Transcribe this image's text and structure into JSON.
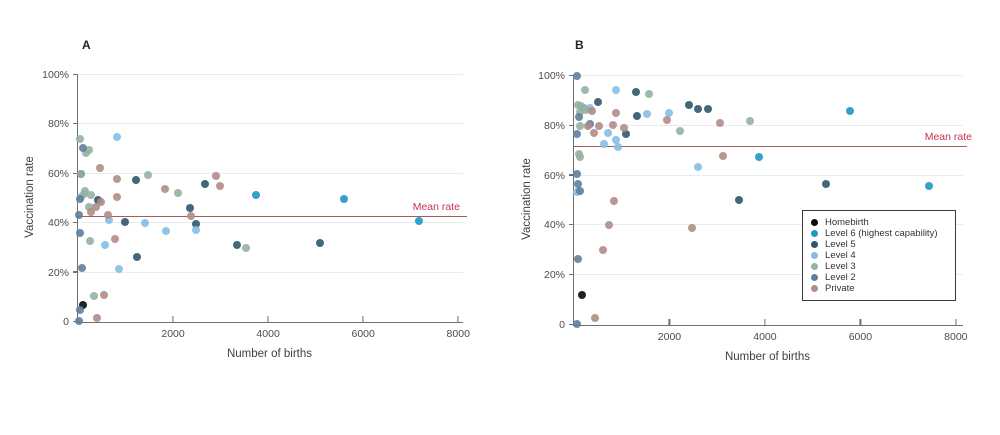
{
  "palette": {
    "homebirth": "#0a0a0a",
    "level6": "#1e96c8",
    "level5": "#30566d",
    "level4": "#86bde6",
    "level3": "#95b1a2",
    "level2": "#5e7f9d",
    "private": "#b18c86",
    "mean_line": "#ab5a55",
    "mean_text": "#c73350",
    "gridline": "#e4edf1",
    "axis": "#6f6f6f"
  },
  "legend": {
    "items": [
      {
        "key": "homebirth",
        "label": "Homebirth"
      },
      {
        "key": "level6",
        "label": "Level 6 (highest capability)"
      },
      {
        "key": "level5",
        "label": "Level 5"
      },
      {
        "key": "level4",
        "label": "Level 4"
      },
      {
        "key": "level3",
        "label": "Level 3"
      },
      {
        "key": "level2",
        "label": "Level 2"
      },
      {
        "key": "private",
        "label": "Private"
      }
    ]
  },
  "chart_data": [
    {
      "type": "scatter",
      "panel_label": "A",
      "xlabel": "Number of births",
      "ylabel": "Vaccination rate",
      "xlim": [
        0,
        8100
      ],
      "ylim": [
        0,
        100
      ],
      "x_ticks": [
        {
          "v": 2000,
          "label": "2000"
        },
        {
          "v": 4000,
          "label": "4000"
        },
        {
          "v": 6000,
          "label": "6000"
        },
        {
          "v": 8000,
          "label": "8000"
        }
      ],
      "y_ticks": [
        {
          "v": 0,
          "label": "0"
        },
        {
          "v": 20,
          "label": "20%"
        },
        {
          "v": 40,
          "label": "40%"
        },
        {
          "v": 60,
          "label": "60%"
        },
        {
          "v": 80,
          "label": "80%"
        },
        {
          "v": 100,
          "label": "100%"
        }
      ],
      "grid": "horizontal",
      "mean_rate": 42.5,
      "mean_label": "Mean rate",
      "show_legend": false,
      "series": [
        {
          "name": "Homebirth",
          "key": "homebirth",
          "points": [
            [
              100,
              7
            ]
          ]
        },
        {
          "name": "Level 6 (highest capability)",
          "key": "level6",
          "points": [
            [
              3740,
              51.5
            ],
            [
              5590,
              50
            ],
            [
              7180,
              41
            ]
          ]
        },
        {
          "name": "Level 5",
          "key": "level5",
          "points": [
            [
              60,
              60
            ],
            [
              420,
              49.5
            ],
            [
              980,
              40.5
            ],
            [
              1230,
              57.5
            ],
            [
              1250,
              26.5
            ],
            [
              2350,
              46
            ],
            [
              2480,
              39.5
            ],
            [
              2680,
              56
            ],
            [
              3350,
              31
            ],
            [
              5090,
              32
            ]
          ]
        },
        {
          "name": "Level 4",
          "key": "level4",
          "points": [
            [
              60,
              50.5
            ],
            [
              560,
              31
            ],
            [
              660,
              41.5
            ],
            [
              810,
              75
            ],
            [
              870,
              21.5
            ],
            [
              1400,
              40
            ],
            [
              1850,
              36.8
            ],
            [
              2480,
              37.2
            ]
          ]
        },
        {
          "name": "Level 3",
          "key": "level3",
          "points": [
            [
              50,
              74
            ],
            [
              170,
              68.5
            ],
            [
              230,
              69.5
            ],
            [
              60,
              59.8
            ],
            [
              120,
              52
            ],
            [
              150,
              53
            ],
            [
              280,
              51.5
            ],
            [
              240,
              46.5
            ],
            [
              260,
              33
            ],
            [
              330,
              10.5
            ],
            [
              1480,
              59.5
            ],
            [
              2100,
              52.3
            ],
            [
              3530,
              30
            ]
          ]
        },
        {
          "name": "Level 2",
          "key": "level2",
          "points": [
            [
              100,
              70.5
            ],
            [
              40,
              50
            ],
            [
              30,
              43.5
            ],
            [
              50,
              36
            ],
            [
              80,
              22
            ],
            [
              50,
              5
            ],
            [
              20,
              0.5
            ]
          ]
        },
        {
          "name": "Private",
          "key": "private",
          "points": [
            [
              470,
              62.5
            ],
            [
              810,
              58
            ],
            [
              280,
              44.5
            ],
            [
              370,
              46.5
            ],
            [
              480,
              48.5
            ],
            [
              640,
              43.5
            ],
            [
              820,
              50.5
            ],
            [
              780,
              33.7
            ],
            [
              1840,
              53.7
            ],
            [
              2370,
              42.8
            ],
            [
              2900,
              59
            ],
            [
              2990,
              55
            ],
            [
              550,
              11
            ],
            [
              400,
              1.5
            ]
          ]
        }
      ]
    },
    {
      "type": "scatter",
      "panel_label": "B",
      "xlabel": "Number of births",
      "ylabel": "Vaccination rate",
      "xlim": [
        0,
        8150
      ],
      "ylim": [
        0,
        100
      ],
      "x_ticks": [
        {
          "v": 2000,
          "label": "2000"
        },
        {
          "v": 4000,
          "label": "4000"
        },
        {
          "v": 6000,
          "label": "6000"
        },
        {
          "v": 8000,
          "label": "8000"
        }
      ],
      "y_ticks": [
        {
          "v": 0,
          "label": "0"
        },
        {
          "v": 20,
          "label": "20%"
        },
        {
          "v": 40,
          "label": "40%"
        },
        {
          "v": 60,
          "label": "60%"
        },
        {
          "v": 80,
          "label": "80%"
        },
        {
          "v": 100,
          "label": "100%"
        }
      ],
      "grid": "horizontal",
      "mean_rate": 71.5,
      "mean_label": "Mean rate",
      "show_legend": true,
      "series": [
        {
          "name": "Homebirth",
          "key": "homebirth",
          "points": [
            [
              160,
              12
            ]
          ]
        },
        {
          "name": "Level 6 (highest capability)",
          "key": "level6",
          "points": [
            [
              3870,
              67.5
            ],
            [
              5790,
              86
            ],
            [
              7430,
              56
            ]
          ]
        },
        {
          "name": "Level 5",
          "key": "level5",
          "points": [
            [
              500,
              89.5
            ],
            [
              1300,
              93.5
            ],
            [
              1330,
              84
            ],
            [
              1080,
              76.8
            ],
            [
              2410,
              88.5
            ],
            [
              2590,
              86.8
            ],
            [
              2810,
              86.8
            ],
            [
              3460,
              50.3
            ],
            [
              5280,
              56.8
            ]
          ]
        },
        {
          "name": "Level 4",
          "key": "level4",
          "points": [
            [
              880,
              94.3
            ],
            [
              340,
              87
            ],
            [
              1520,
              84.7
            ],
            [
              1980,
              85
            ],
            [
              720,
              77.3
            ],
            [
              870,
              74.3
            ],
            [
              620,
              72.8
            ],
            [
              930,
              71.3
            ],
            [
              2600,
              63.5
            ],
            [
              70,
              53.5
            ]
          ]
        },
        {
          "name": "Level 3",
          "key": "level3",
          "points": [
            [
              240,
              94.3
            ],
            [
              1570,
              92.7
            ],
            [
              90,
              88.5
            ],
            [
              150,
              88
            ],
            [
              210,
              87.3
            ],
            [
              260,
              86.3
            ],
            [
              130,
              85.5
            ],
            [
              135,
              80
            ],
            [
              2230,
              77.8
            ],
            [
              3690,
              81.8
            ],
            [
              95,
              68.5
            ],
            [
              120,
              67.3
            ]
          ]
        },
        {
          "name": "Level 2",
          "key": "level2",
          "points": [
            [
              60,
              100
            ],
            [
              100,
              83.5
            ],
            [
              340,
              80.7
            ],
            [
              65,
              76.8
            ],
            [
              65,
              60.5
            ],
            [
              80,
              56.7
            ],
            [
              130,
              53.7
            ],
            [
              80,
              26.5
            ],
            [
              60,
              0.3
            ]
          ]
        },
        {
          "name": "Private",
          "key": "private",
          "points": [
            [
              880,
              85
            ],
            [
              380,
              86
            ],
            [
              300,
              80
            ],
            [
              520,
              80
            ],
            [
              820,
              80.3
            ],
            [
              1050,
              79.3
            ],
            [
              420,
              77.3
            ],
            [
              1940,
              82.2
            ],
            [
              3050,
              81.3
            ],
            [
              3130,
              67.7
            ],
            [
              840,
              49.7
            ],
            [
              730,
              40.3
            ],
            [
              2480,
              38.8
            ],
            [
              600,
              30.2
            ],
            [
              430,
              2.7
            ]
          ]
        }
      ]
    }
  ]
}
